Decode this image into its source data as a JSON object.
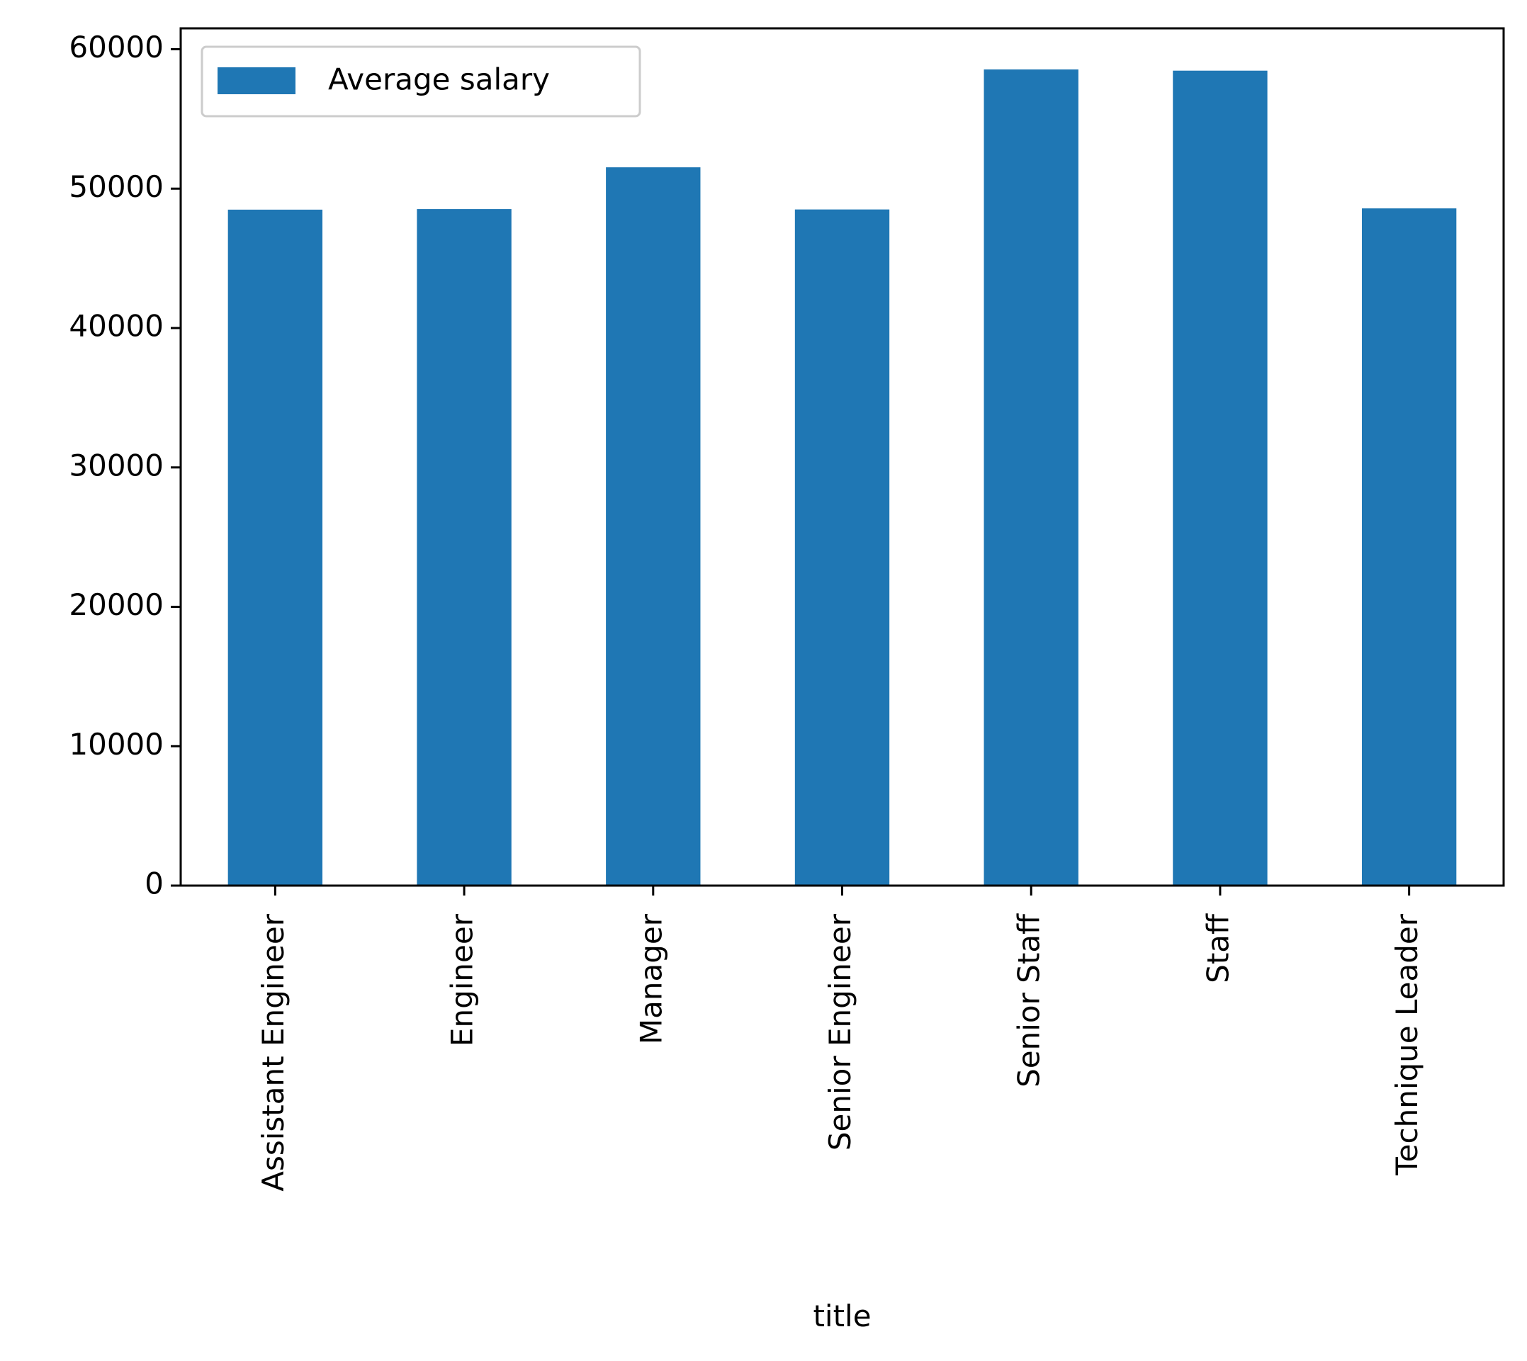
{
  "chart_data": {
    "type": "bar",
    "categories": [
      "Assistant Engineer",
      "Engineer",
      "Manager",
      "Senior Engineer",
      "Senior Staff",
      "Staff",
      "Technique Leader"
    ],
    "series": [
      {
        "name": "Average salary",
        "values": [
          48493,
          48535,
          51531,
          48507,
          58550,
          58465,
          48583
        ],
        "color": "#1f77b4"
      }
    ],
    "title": "",
    "xlabel": "title",
    "ylabel": "",
    "ylim": [
      0,
      61500
    ],
    "yticks": [
      0,
      10000,
      20000,
      30000,
      40000,
      50000,
      60000
    ],
    "grid": false,
    "legend_position": "top-left"
  }
}
